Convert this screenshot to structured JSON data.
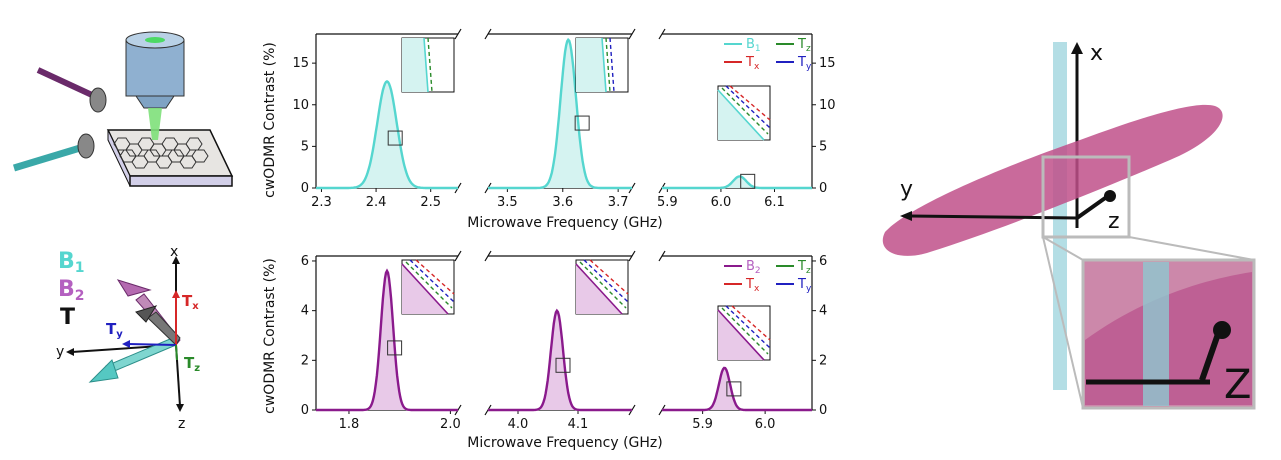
{
  "colors": {
    "b1": "#55d6cf",
    "b1_fill": "#d5f3f1",
    "b2": "#8a1a8c",
    "b2_fill": "#e8c9e8",
    "b2_label": "#b460c0",
    "tx": "#d62728",
    "ty": "#2020c0",
    "tz": "#2a8a2a",
    "membrane": "#c0508a",
    "axis": "#222222"
  },
  "labels": {
    "ylabel": "cwODMR Contrast (%)",
    "xlabel": "Microwave Frequency (GHz)"
  },
  "legend_top": [
    {
      "key": "b1",
      "base": "B",
      "sub": "1",
      "style": "solid"
    },
    {
      "key": "tz",
      "base": "T",
      "sub": "z",
      "style": "solid"
    },
    {
      "key": "tx",
      "base": "T",
      "sub": "x",
      "style": "solid"
    },
    {
      "key": "ty",
      "base": "T",
      "sub": "y",
      "style": "solid"
    }
  ],
  "legend_bottom": [
    {
      "key": "b2",
      "base": "B",
      "sub": "2",
      "style": "solid"
    },
    {
      "key": "tz",
      "base": "T",
      "sub": "z",
      "style": "solid"
    },
    {
      "key": "tx",
      "base": "T",
      "sub": "x",
      "style": "solid"
    },
    {
      "key": "ty",
      "base": "T",
      "sub": "y",
      "style": "solid"
    }
  ],
  "chart_data": [
    {
      "type": "line",
      "row": "top",
      "series": [
        {
          "name": "B1",
          "style": "b1"
        }
      ],
      "ylim": [
        0,
        18.5
      ],
      "yticks": [
        0,
        5,
        10,
        15
      ],
      "panels": [
        {
          "xlim": [
            2.29,
            2.55
          ],
          "xticks": [
            "2.3",
            "2.4",
            "2.5"
          ],
          "tickvals": [
            2.3,
            2.4,
            2.5
          ],
          "center": 2.42,
          "sigma": 0.018,
          "peak": 12.8,
          "box": [
            2.435,
            6.0
          ]
        },
        {
          "xlim": [
            3.465,
            3.725
          ],
          "xticks": [
            "3.5",
            "3.6",
            "3.7"
          ],
          "tickvals": [
            3.5,
            3.6,
            3.7
          ],
          "center": 3.61,
          "sigma": 0.014,
          "peak": 17.8,
          "box": [
            3.635,
            7.8
          ]
        },
        {
          "xlim": [
            5.89,
            6.17
          ],
          "xticks": [
            "5.9",
            "6.0",
            "6.1"
          ],
          "tickvals": [
            5.9,
            6.0,
            6.1
          ],
          "center": 6.035,
          "sigma": 0.012,
          "peak": 1.4,
          "box": [
            6.05,
            0.8
          ]
        }
      ]
    },
    {
      "type": "line",
      "row": "bottom",
      "series": [
        {
          "name": "B2",
          "style": "b2"
        }
      ],
      "ylim": [
        0,
        6.2
      ],
      "yticks": [
        0,
        2,
        4,
        6
      ],
      "panels": [
        {
          "xlim": [
            1.735,
            2.015
          ],
          "xticks": [
            "1.8",
            "2.0"
          ],
          "tickvals": [
            1.8,
            2.0
          ],
          "center": 1.875,
          "sigma": 0.012,
          "peak": 5.6,
          "box": [
            1.89,
            2.5
          ]
        },
        {
          "xlim": [
            3.95,
            4.19
          ],
          "xticks": [
            "4.0",
            "4.1"
          ],
          "tickvals": [
            4.0,
            4.1
          ],
          "center": 4.065,
          "sigma": 0.01,
          "peak": 4.0,
          "box": [
            4.075,
            1.8
          ]
        },
        {
          "xlim": [
            5.835,
            6.075
          ],
          "xticks": [
            "5.9",
            "6.0"
          ],
          "tickvals": [
            5.9,
            6.0
          ],
          "center": 5.935,
          "sigma": 0.009,
          "peak": 1.7,
          "box": [
            5.95,
            0.85
          ]
        }
      ]
    }
  ],
  "left_diagram": {
    "b1": {
      "base": "B",
      "sub": "1"
    },
    "b2": {
      "base": "B",
      "sub": "2"
    },
    "t": "T",
    "tx": {
      "base": "T",
      "sub": "x"
    },
    "ty": {
      "base": "T",
      "sub": "y"
    },
    "tz": {
      "base": "T",
      "sub": "z"
    },
    "axis_x": "x",
    "axis_y": "y",
    "axis_z": "z"
  },
  "right_diagram": {
    "axis_x": "x",
    "axis_y": "y",
    "axis_z": "z",
    "inset_z": "Z"
  }
}
